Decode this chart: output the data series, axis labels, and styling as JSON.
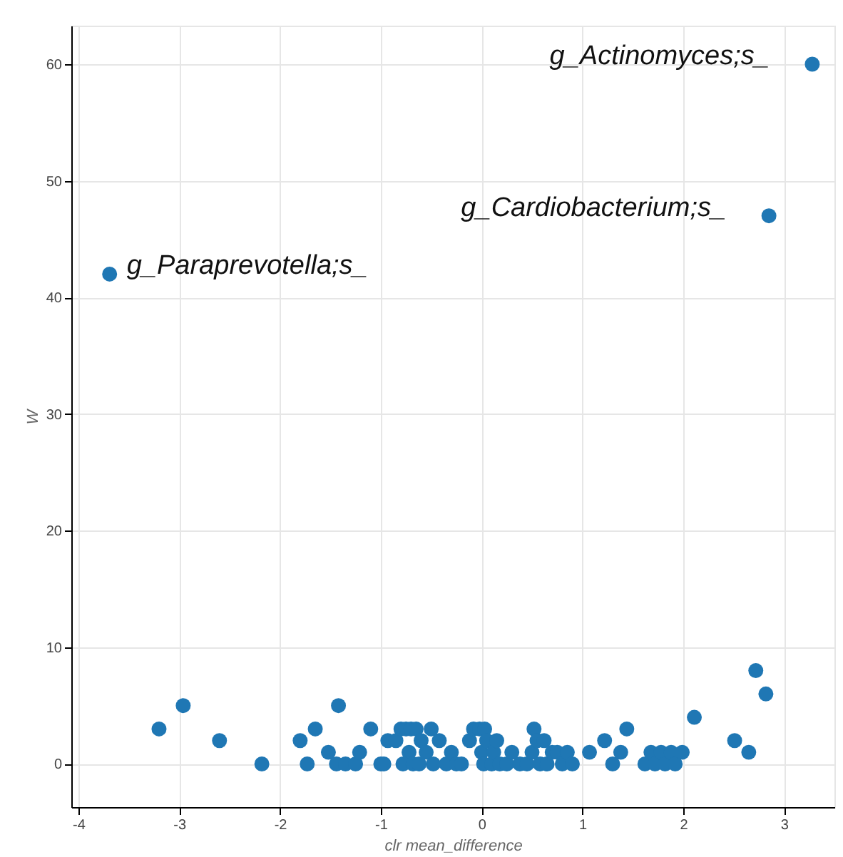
{
  "chart_data": {
    "type": "scatter",
    "xlabel": "clr mean_difference",
    "ylabel": "W",
    "x": [
      -3.69,
      3.28,
      2.85,
      -3.2,
      -2.96,
      -2.6,
      -2.18,
      -1.8,
      -1.73,
      -1.65,
      -1.42,
      -1.52,
      -1.44,
      -1.35,
      -1.25,
      -1.21,
      -1.1,
      -1.0,
      -0.93,
      -0.97,
      -0.85,
      -0.8,
      -0.75,
      -0.7,
      -0.65,
      -0.72,
      -0.78,
      -0.68,
      -0.6,
      -0.62,
      -0.55,
      -0.5,
      -0.48,
      -0.42,
      -0.35,
      -0.3,
      -0.25,
      -0.2,
      -0.12,
      -0.08,
      -0.02,
      0.03,
      0.0,
      0.05,
      0.02,
      0.1,
      0.12,
      0.15,
      0.18,
      0.25,
      0.3,
      0.38,
      0.45,
      0.5,
      0.52,
      0.55,
      0.58,
      0.62,
      0.65,
      0.7,
      0.75,
      0.8,
      0.85,
      0.9,
      1.07,
      1.22,
      1.3,
      1.38,
      1.44,
      1.62,
      1.68,
      1.72,
      1.78,
      1.82,
      1.88,
      1.92,
      1.99,
      2.11,
      2.51,
      2.65,
      2.72,
      2.82
    ],
    "series": [
      {
        "color": "#1f77b4",
        "values": [
          42,
          60,
          47,
          3,
          5,
          2,
          0,
          2,
          0,
          3,
          5,
          1,
          0,
          0,
          0,
          1,
          3,
          0,
          2,
          0,
          2,
          3,
          3,
          3,
          3,
          1,
          0,
          0,
          2,
          0,
          1,
          3,
          0,
          2,
          0,
          1,
          0,
          0,
          2,
          3,
          3,
          3,
          1,
          2,
          0,
          0,
          1,
          2,
          0,
          0,
          1,
          0,
          0,
          1,
          3,
          2,
          0,
          2,
          0,
          1,
          1,
          0,
          1,
          0,
          1,
          2,
          0,
          1,
          3,
          0,
          1,
          0,
          1,
          0,
          1,
          0,
          1,
          4,
          2,
          1,
          8,
          6
        ]
      }
    ],
    "xlim": [
      -4.07,
      3.5
    ],
    "ylim": [
      -3.7,
      63.3
    ],
    "xticks": [
      -4,
      -3,
      -2,
      -1,
      0,
      1,
      2,
      3
    ],
    "yticks": [
      0,
      10,
      20,
      30,
      40,
      50,
      60
    ],
    "grid": true,
    "marker": "circle",
    "annotations": [
      {
        "text": "g_Actinomyces;s_",
        "x": 3.28,
        "y": 60
      },
      {
        "text": "g_Cardiobacterium;s_",
        "x": 2.85,
        "y": 47
      },
      {
        "text": "g_Paraprevotella;s_",
        "x": -3.69,
        "y": 42
      }
    ]
  }
}
